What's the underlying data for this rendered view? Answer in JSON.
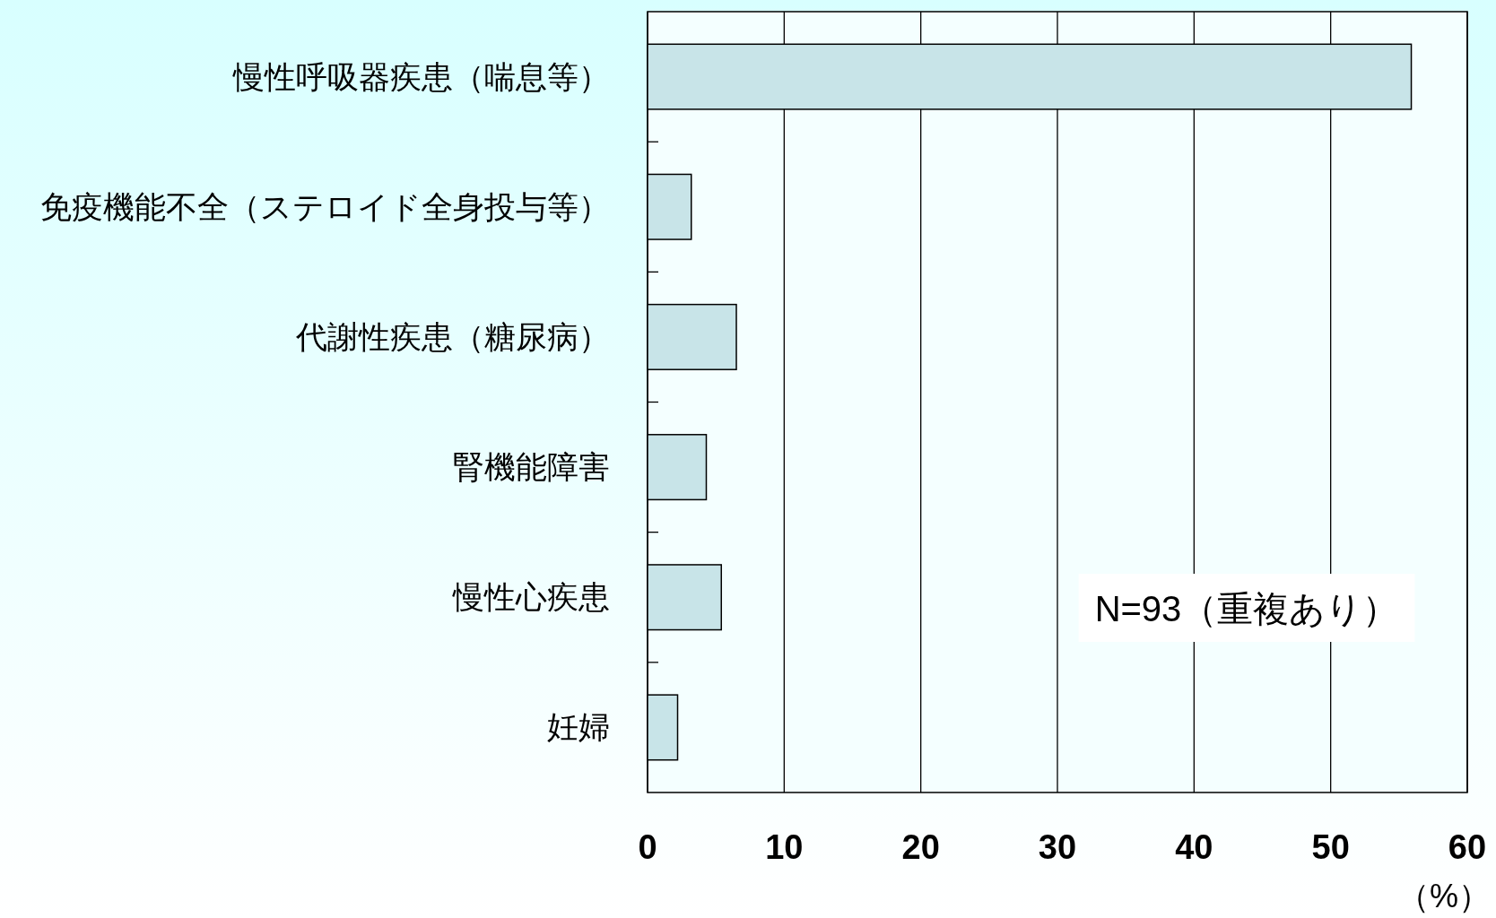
{
  "chart_data": {
    "type": "bar",
    "orientation": "horizontal",
    "categories": [
      "慢性呼吸器疾患（喘息等）",
      "免疫機能不全（ステロイド全身投与等）",
      "代謝性疾患（糖尿病）",
      "腎機能障害",
      "慢性心疾患",
      "妊婦"
    ],
    "values": [
      55.9,
      3.2,
      6.5,
      4.3,
      5.4,
      2.2
    ],
    "color": "#c8e4e8",
    "xlim": [
      0,
      60
    ],
    "xticks": [
      0,
      10,
      20,
      30,
      40,
      50,
      60
    ],
    "grid": "x",
    "xlabel": "（%）",
    "annotations": [
      "N=93（重複あり）"
    ]
  }
}
